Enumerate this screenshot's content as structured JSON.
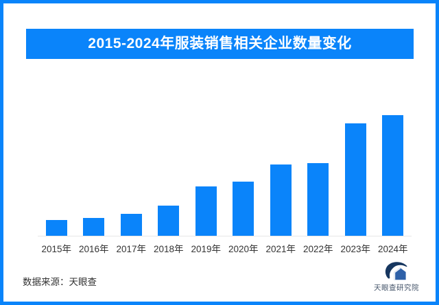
{
  "colors": {
    "accent_blue": "#0a84fa",
    "axis_line": "#e6e6e6",
    "label_text": "#333333",
    "logo_navy": "#16365f",
    "logo_house_blue": "#2e61a8",
    "logo_text": "#44546a"
  },
  "title_banner": {
    "text": "2015-2024年服装销售相关企业数量变化"
  },
  "chart_data": {
    "type": "bar",
    "title": "2015-2024年服装销售相关企业数量变化",
    "categories": [
      "2015年",
      "2016年",
      "2017年",
      "2018年",
      "2019年",
      "2020年",
      "2021年",
      "2022年",
      "2023年",
      "2024年"
    ],
    "values": [
      13,
      15,
      18,
      25,
      41,
      45,
      59,
      60,
      93,
      100
    ],
    "value_scale": "relative bar height as percent of max; no numeric y-axis, gridlines or data labels are shown",
    "bar_color": "#0a84fa",
    "xlabel": "",
    "ylabel": "",
    "ylim": [
      0,
      100
    ],
    "grid": false,
    "legend": false
  },
  "footer": {
    "source_text": "数据来源：天眼查",
    "logo_text": "天眼查研究院"
  }
}
